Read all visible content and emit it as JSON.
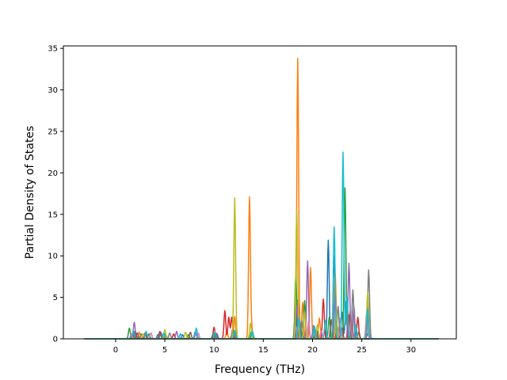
{
  "chart_data": {
    "type": "line",
    "title": "",
    "xlabel": "Frequency (THz)",
    "ylabel": "Partial Density of States",
    "xlim": [
      -5.3,
      34.6
    ],
    "ylim": [
      0,
      35.3
    ],
    "xticks": [
      0,
      5,
      10,
      15,
      20,
      25,
      30
    ],
    "yticks": [
      0,
      5,
      10,
      15,
      20,
      25,
      30,
      35
    ],
    "x_range": [
      -3.2,
      32.8
    ],
    "grid": false,
    "legend": "none",
    "colors": [
      "#1f77b4",
      "#ff7f0e",
      "#2ca02c",
      "#d62728",
      "#9467bd",
      "#8c564b",
      "#e377c2",
      "#7f7f7f",
      "#bcbd22",
      "#17becf"
    ],
    "series": [
      {
        "color": "#1f77b4",
        "peaks": [
          [
            1.7,
            0.6
          ],
          [
            4.3,
            0.5
          ],
          [
            6.8,
            0.5
          ],
          [
            12.0,
            0.8
          ],
          [
            18.5,
            4.7
          ],
          [
            20.3,
            0.7
          ],
          [
            21.6,
            11.9
          ],
          [
            22.2,
            10.0
          ],
          [
            23.0,
            3.2
          ],
          [
            23.4,
            4.5
          ],
          [
            25.6,
            0.6
          ]
        ]
      },
      {
        "color": "#ff7f0e",
        "peaks": [
          [
            2.4,
            0.8
          ],
          [
            5.1,
            0.5
          ],
          [
            11.3,
            0.9
          ],
          [
            12.1,
            2.7
          ],
          [
            13.6,
            17.0
          ],
          [
            13.8,
            1.4
          ],
          [
            18.5,
            33.8
          ],
          [
            19.0,
            4.4
          ],
          [
            19.8,
            8.6
          ],
          [
            20.7,
            2.5
          ],
          [
            22.3,
            7.9
          ],
          [
            23.8,
            3.3
          ],
          [
            25.6,
            5.2
          ]
        ]
      },
      {
        "color": "#2ca02c",
        "peaks": [
          [
            1.4,
            1.3
          ],
          [
            1.9,
            0.9
          ],
          [
            3.4,
            0.6
          ],
          [
            5.0,
            0.6
          ],
          [
            7.4,
            0.5
          ],
          [
            10.0,
            0.7
          ],
          [
            13.8,
            0.9
          ],
          [
            18.3,
            7.7
          ],
          [
            18.8,
            1.2
          ],
          [
            19.2,
            4.6
          ],
          [
            21.7,
            2.6
          ],
          [
            23.3,
            18.2
          ],
          [
            24.7,
            0.8
          ]
        ]
      },
      {
        "color": "#d62728",
        "peaks": [
          [
            2.0,
            0.9
          ],
          [
            3.0,
            0.7
          ],
          [
            5.9,
            0.6
          ],
          [
            10.0,
            1.4
          ],
          [
            11.1,
            3.4
          ],
          [
            11.5,
            2.6
          ],
          [
            11.8,
            2.6
          ],
          [
            18.6,
            1.0
          ],
          [
            21.1,
            4.8
          ],
          [
            22.5,
            1.6
          ],
          [
            23.7,
            2.9
          ],
          [
            24.6,
            2.6
          ]
        ]
      },
      {
        "color": "#9467bd",
        "peaks": [
          [
            1.9,
            2.0
          ],
          [
            4.6,
            0.8
          ],
          [
            6.2,
            0.9
          ],
          [
            8.1,
            0.9
          ],
          [
            10.3,
            0.6
          ],
          [
            12.1,
            0.9
          ],
          [
            18.4,
            4.0
          ],
          [
            19.5,
            9.4
          ],
          [
            22.3,
            5.2
          ],
          [
            23.7,
            9.1
          ],
          [
            24.2,
            3.9
          ]
        ]
      },
      {
        "color": "#8c564b",
        "peaks": [
          [
            2.2,
            0.7
          ],
          [
            4.5,
            0.9
          ],
          [
            7.6,
            0.8
          ],
          [
            10.2,
            0.7
          ],
          [
            11.9,
            1.2
          ],
          [
            18.7,
            1.8
          ],
          [
            20.4,
            1.1
          ],
          [
            21.9,
            2.3
          ],
          [
            23.0,
            1.3
          ],
          [
            24.0,
            1.6
          ]
        ]
      },
      {
        "color": "#e377c2",
        "peaks": [
          [
            1.6,
            0.6
          ],
          [
            3.6,
            0.7
          ],
          [
            6.6,
            0.6
          ],
          [
            8.4,
            0.7
          ],
          [
            18.3,
            1.5
          ],
          [
            19.6,
            2.1
          ],
          [
            20.9,
            1.0
          ],
          [
            22.8,
            2.5
          ],
          [
            23.9,
            2.0
          ],
          [
            25.5,
            3.2
          ]
        ]
      },
      {
        "color": "#7f7f7f",
        "peaks": [
          [
            2.6,
            0.6
          ],
          [
            5.5,
            0.7
          ],
          [
            9.9,
            0.6
          ],
          [
            12.0,
            0.6
          ],
          [
            18.9,
            2.2
          ],
          [
            20.1,
            1.6
          ],
          [
            22.6,
            3.9
          ],
          [
            24.1,
            5.9
          ],
          [
            25.7,
            8.3
          ]
        ]
      },
      {
        "color": "#bcbd22",
        "peaks": [
          [
            2.8,
            0.6
          ],
          [
            5.0,
            1.1
          ],
          [
            7.1,
            0.8
          ],
          [
            12.1,
            17.0
          ],
          [
            13.7,
            1.9
          ],
          [
            18.4,
            15.5
          ],
          [
            19.2,
            3.2
          ],
          [
            20.5,
            1.7
          ],
          [
            22.4,
            3.3
          ],
          [
            25.6,
            5.6
          ]
        ]
      },
      {
        "color": "#17becf",
        "peaks": [
          [
            1.8,
            0.9
          ],
          [
            3.1,
            0.9
          ],
          [
            4.9,
            0.7
          ],
          [
            6.6,
            0.6
          ],
          [
            8.2,
            1.3
          ],
          [
            10.1,
            0.8
          ],
          [
            12.1,
            1.0
          ],
          [
            13.9,
            0.9
          ],
          [
            18.6,
            2.5
          ],
          [
            20.2,
            1.5
          ],
          [
            21.3,
            2.2
          ],
          [
            22.2,
            13.5
          ],
          [
            23.1,
            22.5
          ],
          [
            23.5,
            5.0
          ],
          [
            24.4,
            1.7
          ],
          [
            25.6,
            3.6
          ]
        ]
      }
    ]
  }
}
